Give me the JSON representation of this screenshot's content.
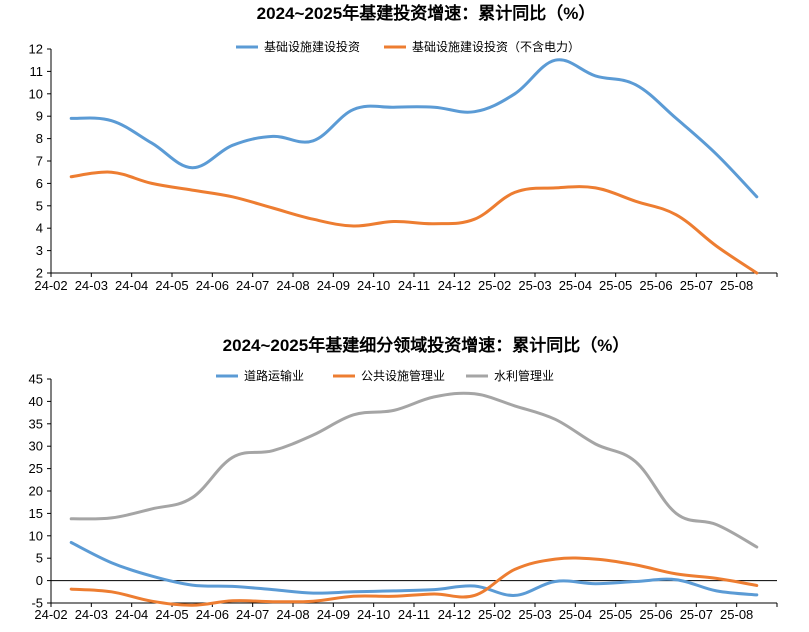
{
  "chart_data": [
    {
      "type": "line",
      "title": "2024~2025年基建投资增速：累计同比（%）",
      "categories": [
        "24-02",
        "24-03",
        "24-04",
        "24-05",
        "24-06",
        "24-07",
        "24-08",
        "24-09",
        "24-10",
        "24-11",
        "24-12",
        "25-02",
        "25-03",
        "25-04",
        "25-05",
        "25-06",
        "25-07",
        "25-08"
      ],
      "ylim": [
        2,
        12
      ],
      "yticks": [
        2,
        3,
        4,
        5,
        6,
        7,
        8,
        9,
        10,
        11,
        12
      ],
      "legend_position": "top-center",
      "series": [
        {
          "name": "基础设施建设投资",
          "color": "#5b9bd5",
          "values": [
            8.9,
            8.8,
            7.8,
            6.7,
            7.7,
            8.1,
            7.9,
            9.3,
            9.4,
            9.4,
            9.2,
            10.0,
            11.5,
            10.8,
            10.4,
            8.9,
            7.3,
            5.4
          ]
        },
        {
          "name": "基础设施建设投资（不含电力）",
          "color": "#ed7d31",
          "values": [
            6.3,
            6.5,
            6.0,
            5.7,
            5.4,
            4.9,
            4.4,
            4.1,
            4.3,
            4.2,
            4.4,
            5.6,
            5.8,
            5.8,
            5.2,
            4.6,
            3.2,
            2.0
          ]
        }
      ]
    },
    {
      "type": "line",
      "title": "2024~2025年基建细分领域投资增速：累计同比（%）",
      "categories": [
        "24-02",
        "24-03",
        "24-04",
        "24-05",
        "24-06",
        "24-07",
        "24-08",
        "24-09",
        "24-10",
        "24-11",
        "24-12",
        "25-02",
        "25-03",
        "25-04",
        "25-05",
        "25-06",
        "25-07",
        "25-08"
      ],
      "ylim": [
        -5,
        45
      ],
      "yticks": [
        -5,
        0,
        5,
        10,
        15,
        20,
        25,
        30,
        35,
        40,
        45
      ],
      "legend_position": "top-center",
      "series": [
        {
          "name": "道路运输业",
          "color": "#5b9bd5",
          "values": [
            8.5,
            4.0,
            1.0,
            -1.0,
            -1.3,
            -2.0,
            -2.8,
            -2.5,
            -2.3,
            -2.0,
            -1.2,
            -3.3,
            -0.2,
            -0.7,
            -0.2,
            0.2,
            -2.3,
            -3.2
          ]
        },
        {
          "name": "公共设施管理业",
          "color": "#ed7d31",
          "values": [
            -1.9,
            -2.5,
            -4.6,
            -5.5,
            -4.5,
            -4.7,
            -4.6,
            -3.5,
            -3.5,
            -3.0,
            -3.3,
            2.5,
            4.8,
            4.8,
            3.5,
            1.5,
            0.5,
            -1.1
          ]
        },
        {
          "name": "水利管理业",
          "color": "#a5a5a5",
          "values": [
            13.8,
            14.0,
            16.0,
            18.5,
            27.5,
            29.0,
            32.5,
            37.0,
            38.0,
            41.0,
            41.7,
            39.0,
            36.0,
            30.5,
            26.5,
            15.0,
            12.5,
            7.5
          ]
        }
      ]
    }
  ]
}
